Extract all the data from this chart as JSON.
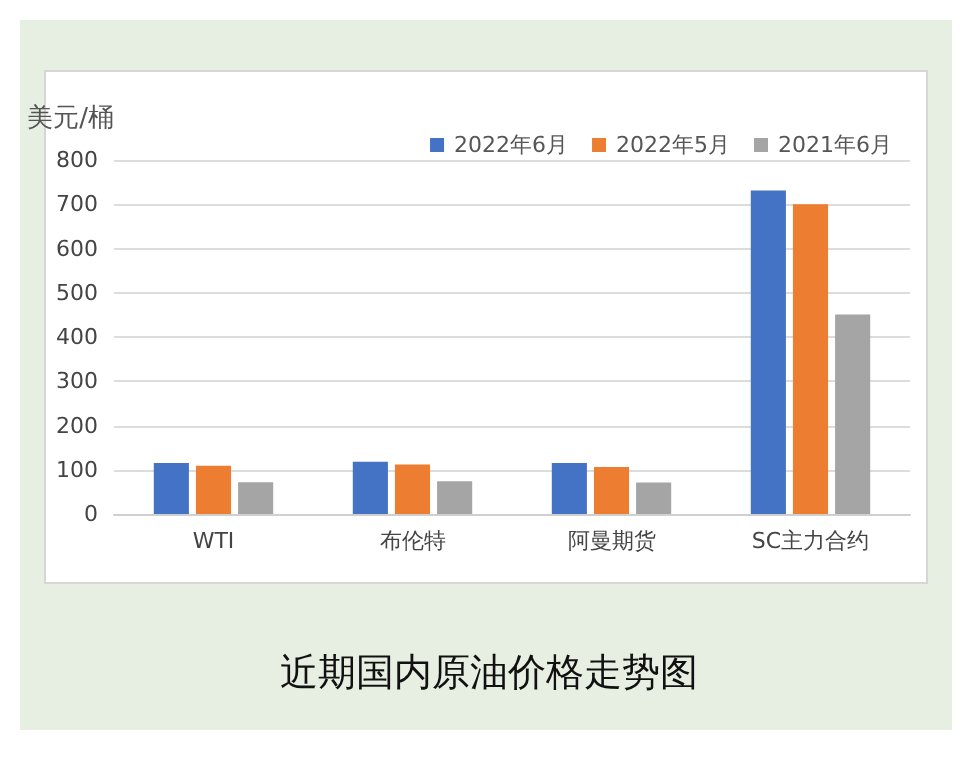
{
  "chart_data": {
    "type": "bar",
    "title": "近期国内原油价格走势图",
    "ylabel": "美元/桶",
    "categories": [
      "WTI",
      "布伦特",
      "阿曼期货",
      "SC主力合约"
    ],
    "series": [
      {
        "name": "2022年6月",
        "color": "#4472c4",
        "values": [
          115,
          118,
          115,
          731
        ]
      },
      {
        "name": "2022年5月",
        "color": "#ed7d31",
        "values": [
          109,
          112,
          106,
          700
        ]
      },
      {
        "name": "2021年6月",
        "color": "#a5a5a5",
        "values": [
          72,
          74,
          71,
          451
        ]
      }
    ],
    "ylim": [
      0,
      800
    ],
    "yticks": [
      0,
      100,
      200,
      300,
      400,
      500,
      600,
      700,
      800
    ],
    "grid": "y",
    "legend": "top right"
  }
}
